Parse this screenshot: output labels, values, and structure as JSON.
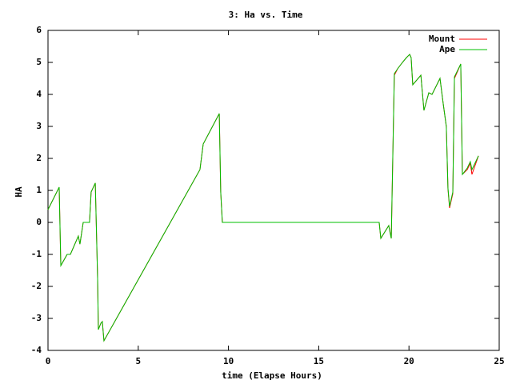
{
  "chart_data": {
    "type": "line",
    "title": "3: Ha vs. Time",
    "x_label": "time (Elapse Hours)",
    "y_label": "HA",
    "x": [
      0,
      0.62,
      0.71,
      1.06,
      1.24,
      1.68,
      1.77,
      1.95,
      2.3,
      2.39,
      2.62,
      2.75,
      2.79,
      2.93,
      3.01,
      3.1,
      8.42,
      8.6,
      9.49,
      9.57,
      9.66,
      18.35,
      18.44,
      18.88,
      19.02,
      19.1,
      19.19,
      19.37,
      19.64,
      19.86,
      20.04,
      20.12,
      20.21,
      20.66,
      20.83,
      21.1,
      21.28,
      21.72,
      21.9,
      22.07,
      22.16,
      22.25,
      22.43,
      22.52,
      22.87,
      22.96,
      23.23,
      23.4,
      23.49,
      23.85
    ],
    "series": [
      {
        "name": "Mount",
        "color": "#ff0000",
        "values": [
          0.4,
          1.1,
          -1.35,
          -1.0,
          -1.0,
          -0.43,
          -0.68,
          0.0,
          0.0,
          0.95,
          1.23,
          -1.8,
          -3.35,
          -3.15,
          -3.1,
          -3.7,
          1.65,
          2.45,
          3.4,
          0.95,
          0.0,
          0.0,
          -0.5,
          -0.1,
          -0.5,
          1.9,
          4.6,
          4.8,
          5.0,
          5.15,
          5.25,
          5.15,
          4.3,
          4.6,
          3.5,
          4.05,
          4.0,
          4.5,
          3.7,
          3.0,
          1.05,
          0.45,
          0.9,
          4.5,
          4.95,
          1.5,
          1.65,
          1.85,
          1.5,
          2.08
        ]
      },
      {
        "name": "Ape",
        "color": "#00c000",
        "values": [
          0.4,
          1.1,
          -1.35,
          -1.0,
          -1.0,
          -0.43,
          -0.68,
          0.0,
          0.0,
          0.95,
          1.23,
          -1.8,
          -3.35,
          -3.15,
          -3.1,
          -3.7,
          1.65,
          2.45,
          3.4,
          0.95,
          0.0,
          0.0,
          -0.5,
          -0.1,
          -0.5,
          1.95,
          4.65,
          4.8,
          5.0,
          5.15,
          5.25,
          5.15,
          4.3,
          4.6,
          3.5,
          4.05,
          4.0,
          4.5,
          3.7,
          3.0,
          1.08,
          0.5,
          0.95,
          4.55,
          4.95,
          1.5,
          1.7,
          1.9,
          1.65,
          2.08
        ]
      }
    ],
    "xlim": [
      0,
      25
    ],
    "xticks": [
      0,
      5,
      10,
      15,
      20,
      25
    ],
    "ylim": [
      -4,
      6
    ],
    "yticks": [
      -4,
      -3,
      -2,
      -1,
      0,
      1,
      2,
      3,
      4,
      5,
      6
    ],
    "legend": "top-right"
  }
}
